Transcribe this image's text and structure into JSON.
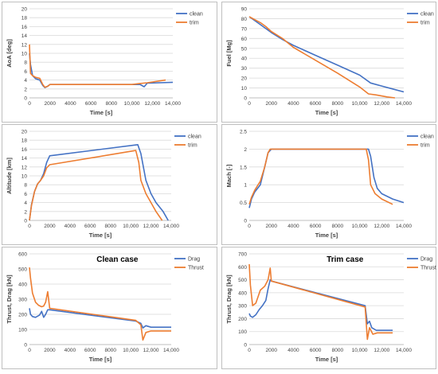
{
  "chart_data": [
    {
      "type": "line",
      "title": "",
      "xlabel": "Time [s]",
      "ylabel": "AoA [deg]",
      "xlim": [
        0,
        14000
      ],
      "ylim": [
        0,
        20
      ],
      "xticks": [
        0,
        2000,
        4000,
        6000,
        8000,
        10000,
        12000,
        14000
      ],
      "xtick_labels": [
        "0",
        "2000",
        "4000",
        "6000",
        "8000",
        "10,000",
        "12,000",
        "14,000"
      ],
      "yticks": [
        0,
        2,
        4,
        6,
        8,
        10,
        12,
        14,
        16,
        18,
        20
      ],
      "ytick_labels": [
        "0",
        "2",
        "4",
        "6",
        "8",
        "10",
        "12",
        "14",
        "16",
        "18",
        "20"
      ],
      "grid": true,
      "legend_position": "top-right",
      "series": [
        {
          "name": "clean",
          "color": "#4472C4",
          "x": [
            0,
            100,
            300,
            600,
            1000,
            1300,
            1500,
            1700,
            2000,
            4000,
            8000,
            10000,
            10800,
            11200,
            11500,
            14000
          ],
          "y": [
            10,
            7.5,
            5,
            4.3,
            4,
            2.8,
            2.3,
            2.5,
            3,
            3,
            3,
            3,
            3,
            2.5,
            3.3,
            3.5
          ]
        },
        {
          "name": "trim",
          "color": "#ED7D31",
          "x": [
            0,
            100,
            300,
            600,
            1000,
            1300,
            1500,
            1800,
            2000,
            4000,
            8000,
            10000,
            10700,
            11500,
            13300
          ],
          "y": [
            12,
            5.5,
            5,
            4.6,
            4.4,
            3,
            2.4,
            2.6,
            3,
            3,
            3,
            3,
            3.2,
            3.4,
            4
          ]
        }
      ]
    },
    {
      "type": "line",
      "title": "",
      "xlabel": "Time [s]",
      "ylabel": "Fuel [Mg]",
      "xlim": [
        0,
        14000
      ],
      "ylim": [
        0,
        90
      ],
      "xticks": [
        0,
        2000,
        4000,
        6000,
        8000,
        10000,
        12000,
        14000
      ],
      "xtick_labels": [
        "0",
        "2000",
        "4000",
        "6000",
        "8000",
        "10,000",
        "12,000",
        "14,000"
      ],
      "yticks": [
        0,
        10,
        20,
        30,
        40,
        50,
        60,
        70,
        80,
        90
      ],
      "ytick_labels": [
        "0",
        "10",
        "20",
        "30",
        "40",
        "50",
        "60",
        "70",
        "80",
        "90"
      ],
      "grid": true,
      "legend_position": "top-right",
      "series": [
        {
          "name": "clean",
          "color": "#4472C4",
          "x": [
            0,
            500,
            1000,
            1500,
            2000,
            3000,
            4000,
            6000,
            8000,
            10000,
            11000,
            12000,
            13000,
            14000
          ],
          "y": [
            82,
            78,
            74,
            70,
            66,
            59,
            53,
            43,
            33,
            23,
            15,
            12,
            9,
            6
          ]
        },
        {
          "name": "trim",
          "color": "#ED7D31",
          "x": [
            0,
            500,
            1000,
            1500,
            2000,
            3000,
            4000,
            6000,
            8000,
            10000,
            10800,
            11500,
            12500,
            13200
          ],
          "y": [
            82,
            79,
            76,
            72,
            67,
            60,
            51,
            38,
            25,
            11,
            4,
            3,
            1,
            0
          ]
        }
      ]
    },
    {
      "type": "line",
      "title": "",
      "xlabel": "Time [s]",
      "ylabel": "Altitude [km]",
      "xlim": [
        0,
        14000
      ],
      "ylim": [
        0,
        20
      ],
      "xticks": [
        0,
        2000,
        4000,
        6000,
        8000,
        10000,
        12000,
        14000
      ],
      "xtick_labels": [
        "0",
        "2000",
        "4000",
        "6000",
        "8000",
        "10,000",
        "12,000",
        "14,000"
      ],
      "yticks": [
        0,
        2,
        4,
        6,
        8,
        10,
        12,
        14,
        16,
        18,
        20
      ],
      "ytick_labels": [
        "0",
        "2",
        "4",
        "6",
        "8",
        "10",
        "12",
        "14",
        "16",
        "18",
        "20"
      ],
      "grid": true,
      "legend_position": "top-right",
      "series": [
        {
          "name": "clean",
          "color": "#4472C4",
          "x": [
            0,
            200,
            500,
            800,
            1100,
            1400,
            1700,
            2000,
            10700,
            11000,
            11500,
            12000,
            12500,
            13200,
            13700
          ],
          "y": [
            0,
            3.5,
            6.5,
            8.2,
            9,
            10.5,
            13,
            14.5,
            17,
            15,
            9,
            6,
            4,
            2,
            0
          ]
        },
        {
          "name": "trim",
          "color": "#ED7D31",
          "x": [
            0,
            200,
            500,
            800,
            1100,
            1400,
            1700,
            2000,
            10500,
            10800,
            11000,
            11500,
            12000,
            12500,
            13100
          ],
          "y": [
            0,
            3.3,
            6.5,
            8.2,
            9,
            10,
            11.8,
            12.5,
            15.7,
            13,
            9,
            6,
            4,
            2,
            0
          ]
        }
      ]
    },
    {
      "type": "line",
      "title": "",
      "xlabel": "Time [s]",
      "ylabel": "Mach [-]",
      "xlim": [
        0,
        14000
      ],
      "ylim": [
        0,
        2.5
      ],
      "xticks": [
        0,
        2000,
        4000,
        6000,
        8000,
        10000,
        12000,
        14000
      ],
      "xtick_labels": [
        "0",
        "2000",
        "4000",
        "6000",
        "8000",
        "10,000",
        "12,000",
        "14,000"
      ],
      "yticks": [
        0,
        0.5,
        1,
        1.5,
        2,
        2.5
      ],
      "ytick_labels": [
        "0",
        "0.5",
        "1",
        "1.5",
        "2",
        "2.5"
      ],
      "grid": true,
      "legend_position": "top-right",
      "series": [
        {
          "name": "clean",
          "color": "#4472C4",
          "x": [
            0,
            200,
            500,
            1000,
            1400,
            1700,
            2000,
            10800,
            11000,
            11300,
            11600,
            12000,
            13000,
            14000
          ],
          "y": [
            0.35,
            0.6,
            0.8,
            1.0,
            1.5,
            1.9,
            2.0,
            2.0,
            1.8,
            1.2,
            0.9,
            0.75,
            0.6,
            0.5
          ]
        },
        {
          "name": "trim",
          "color": "#ED7D31",
          "x": [
            0,
            200,
            500,
            1000,
            1400,
            1700,
            1900,
            10600,
            10800,
            11000,
            11400,
            12000,
            13000
          ],
          "y": [
            0.45,
            0.65,
            0.85,
            1.1,
            1.5,
            1.9,
            2.0,
            2.0,
            1.7,
            1.0,
            0.75,
            0.6,
            0.45
          ]
        }
      ]
    },
    {
      "type": "line",
      "title": "Clean case",
      "xlabel": "Time [s]",
      "ylabel": "Thrust, Drag [kN]",
      "xlim": [
        0,
        14000
      ],
      "ylim": [
        0,
        600
      ],
      "xticks": [
        0,
        2000,
        4000,
        6000,
        8000,
        10000,
        12000,
        14000
      ],
      "xtick_labels": [
        "0",
        "2000",
        "4000",
        "6000",
        "8000",
        "10,000",
        "12,000",
        "14,000"
      ],
      "yticks": [
        0,
        100,
        200,
        300,
        400,
        500,
        600
      ],
      "ytick_labels": [
        "0",
        "100",
        "200",
        "300",
        "400",
        "500",
        "600"
      ],
      "grid": true,
      "legend_position": "top-right",
      "series": [
        {
          "name": "Drag",
          "color": "#4472C4",
          "x": [
            0,
            100,
            300,
            600,
            1000,
            1200,
            1400,
            1600,
            1800,
            2000,
            10500,
            11000,
            11200,
            11500,
            12000,
            14000
          ],
          "y": [
            240,
            200,
            185,
            180,
            195,
            220,
            180,
            200,
            230,
            230,
            155,
            140,
            110,
            125,
            115,
            115
          ]
        },
        {
          "name": "Thrust",
          "color": "#ED7D31",
          "x": [
            0,
            100,
            300,
            600,
            900,
            1200,
            1400,
            1600,
            1800,
            2000,
            10500,
            11000,
            11200,
            11500,
            12000,
            14000
          ],
          "y": [
            510,
            440,
            340,
            280,
            260,
            250,
            255,
            280,
            350,
            240,
            160,
            130,
            30,
            80,
            90,
            90
          ]
        }
      ]
    },
    {
      "type": "line",
      "title": "Trim case",
      "xlabel": "Time [s]",
      "ylabel": "Thrust, Drag [kN]",
      "xlim": [
        0,
        14000
      ],
      "ylim": [
        0,
        700
      ],
      "xticks": [
        0,
        2000,
        4000,
        6000,
        8000,
        10000,
        12000,
        14000
      ],
      "xtick_labels": [
        "0",
        "2000",
        "4000",
        "6000",
        "8000",
        "10,000",
        "12,000",
        "14,000"
      ],
      "yticks": [
        0,
        100,
        200,
        300,
        400,
        500,
        600,
        700
      ],
      "ytick_labels": [
        "0",
        "100",
        "200",
        "300",
        "400",
        "500",
        "600",
        "700"
      ],
      "grid": true,
      "legend_position": "top-right",
      "series": [
        {
          "name": "Drag",
          "color": "#4472C4",
          "x": [
            0,
            100,
            300,
            600,
            900,
            1200,
            1500,
            1700,
            1900,
            2000,
            10500,
            10700,
            10900,
            11100,
            11500,
            13000
          ],
          "y": [
            240,
            220,
            210,
            230,
            270,
            300,
            340,
            430,
            500,
            490,
            300,
            160,
            180,
            130,
            110,
            110
          ]
        },
        {
          "name": "Thrust",
          "color": "#ED7D31",
          "x": [
            0,
            100,
            300,
            600,
            1000,
            1400,
            1700,
            1900,
            2000,
            10500,
            10700,
            10900,
            11200,
            11600,
            13000
          ],
          "y": [
            620,
            460,
            300,
            320,
            420,
            450,
            500,
            590,
            490,
            290,
            40,
            130,
            80,
            90,
            90
          ]
        }
      ]
    }
  ]
}
